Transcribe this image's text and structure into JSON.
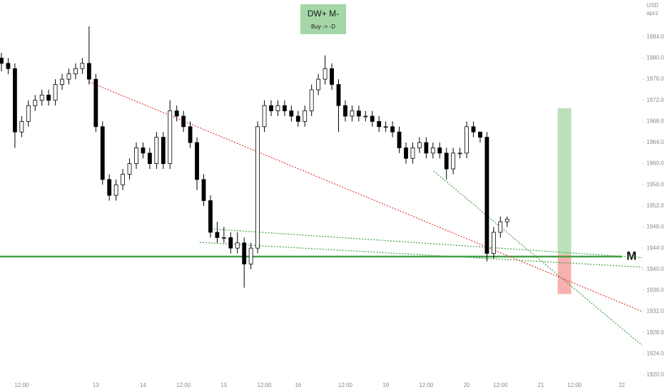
{
  "chart_data": {
    "type": "candlestick",
    "currency": "USD",
    "note": "apcz",
    "signal": {
      "title": "DW+ M-",
      "subtitle": "Buy -> -D"
    },
    "categories": [
      null,
      null,
      null,
      "12:00",
      null,
      null,
      null,
      null,
      null,
      null,
      null,
      null,
      null,
      null,
      "13",
      null,
      null,
      null,
      null,
      null,
      null,
      "14",
      null,
      null,
      null,
      null,
      null,
      "12:00",
      null,
      null,
      null,
      null,
      null,
      "15",
      null,
      null,
      null,
      null,
      null,
      "12:00",
      null,
      null,
      null,
      null,
      "16",
      null,
      null,
      null,
      null,
      null,
      null,
      "12:00",
      null,
      null,
      null,
      null,
      null,
      "19",
      null,
      null,
      null,
      null,
      null,
      "12:00",
      null,
      null,
      null,
      null,
      null,
      "20",
      null,
      null,
      null,
      null,
      "12:00",
      null,
      null,
      null,
      null,
      null,
      "21",
      null,
      null,
      null,
      null,
      "12:00",
      null,
      null,
      null,
      null,
      null,
      null,
      "22",
      null,
      null,
      null
    ],
    "open": [
      1980,
      1979,
      1978,
      1966,
      1968,
      1971,
      1972,
      1973,
      1972,
      1975,
      1976,
      1977,
      1978,
      1979,
      1976,
      1967,
      1957,
      1954,
      1956,
      1958,
      1960,
      1963,
      1962,
      1960,
      1965,
      1960,
      1970,
      1969,
      1967,
      1964,
      1957,
      1953,
      1947,
      1946,
      1946,
      1944,
      1945,
      1941,
      1944,
      1967,
      1971,
      1970,
      1971,
      1970,
      1969,
      1968,
      1970,
      1974,
      1976,
      1978,
      1975,
      1971,
      1969,
      1970,
      1969,
      1969,
      1968,
      1967,
      1967,
      1966,
      1963,
      1961,
      1963,
      1964,
      1962,
      1963,
      1962,
      1959,
      1962,
      1962,
      1967,
      1966,
      1965,
      1943,
      1947,
      1949,
      null,
      null,
      null,
      null,
      null,
      null,
      null,
      null,
      null,
      null,
      null,
      null,
      null,
      null,
      null,
      null,
      null,
      null,
      null,
      null
    ],
    "high": [
      1981,
      1980,
      1979,
      1969,
      1972,
      1973,
      1974,
      1974,
      1976,
      1977,
      1978,
      1979,
      1980,
      1986,
      1977,
      1968,
      1958,
      1957,
      1959,
      1961,
      1964,
      1964,
      1963,
      1966,
      1966,
      1972,
      1971,
      1970,
      1968,
      1965,
      1958,
      1954,
      1949,
      1948,
      1947,
      1947,
      1946,
      1945,
      1968,
      1972,
      1972,
      1972,
      1972,
      1971,
      1970,
      1971,
      1975,
      1977,
      1980.5,
      1979,
      1976,
      1972,
      1971,
      1971,
      1970,
      1970,
      1969,
      1968,
      1968,
      1967,
      1964,
      1964,
      1965,
      1965,
      1964,
      1964,
      1963,
      1963,
      1963,
      1968,
      1968,
      1966,
      1966,
      1948,
      1950,
      1950,
      null,
      null,
      null,
      null,
      null,
      null,
      null,
      null,
      null,
      null,
      null,
      null,
      null,
      null,
      null,
      null,
      null,
      null,
      null,
      null
    ],
    "low": [
      1977.5,
      1977,
      1963,
      1965,
      1967,
      1970,
      1971,
      1971,
      1971,
      1974,
      1975,
      1976,
      1977,
      1975,
      1966,
      1956,
      1953,
      1953,
      1955,
      1957,
      1959,
      1961,
      1959,
      1959,
      1959,
      1959,
      1968,
      1966,
      1963,
      1955,
      1952,
      1946,
      1945,
      1945,
      1943,
      1943,
      1936.5,
      1940,
      1943,
      1966,
      1969,
      1969,
      1969,
      1968,
      1967,
      1967,
      1969,
      1973,
      1975,
      1974,
      1966,
      1968,
      1968,
      1968,
      1968,
      1967,
      1966,
      1966,
      1965,
      1962,
      1960,
      1960,
      1962,
      1961,
      1961,
      1961,
      1957,
      1958,
      1961,
      1961,
      1965,
      1964,
      1941.5,
      1942,
      1946,
      1948,
      null,
      null,
      null,
      null,
      null,
      null,
      null,
      null,
      null,
      null,
      null,
      null,
      null,
      null,
      null,
      null,
      null,
      null,
      null,
      null
    ],
    "close": [
      1979,
      1978,
      1966,
      1968,
      1971,
      1972,
      1973,
      1972,
      1975,
      1976,
      1977,
      1978,
      1979,
      1976,
      1967,
      1957,
      1954,
      1956,
      1958,
      1960,
      1963,
      1962,
      1960,
      1965,
      1960,
      1970,
      1969,
      1967,
      1964,
      1957,
      1953,
      1947,
      1946,
      1946,
      1944,
      1945,
      1941,
      1944,
      1967,
      1971,
      1970,
      1971,
      1970,
      1969,
      1968,
      1970,
      1974,
      1976,
      1978,
      1975,
      1971,
      1969,
      1970,
      1969,
      1969,
      1968,
      1967,
      1967,
      1966,
      1963,
      1961,
      1963,
      1964,
      1962,
      1963,
      1962,
      1959,
      1962,
      1962,
      1967,
      1966,
      1965,
      1943,
      1947,
      1949,
      1949.5,
      null,
      null,
      null,
      null,
      null,
      null,
      null,
      null,
      null,
      null,
      null,
      null,
      null,
      null,
      null,
      null,
      null,
      null,
      null,
      null
    ],
    "up_color": "#ffffff",
    "down_color": "#000000",
    "wick_color": "#000000",
    "ylim": [
      1918.1,
      1991
    ],
    "yticks": [
      {
        "value": 1920,
        "label": "1920.0"
      },
      {
        "value": 1924,
        "label": "1924.0"
      },
      {
        "value": 1928,
        "label": "1928.0"
      },
      {
        "value": 1932,
        "label": "1932.0"
      },
      {
        "value": 1936,
        "label": "1936.0"
      },
      {
        "value": 1940,
        "label": "1940.0"
      },
      {
        "value": 1944,
        "label": "1944.0"
      },
      {
        "value": 1948,
        "label": "1948.0"
      },
      {
        "value": 1952,
        "label": "1952.0"
      },
      {
        "value": 1956,
        "label": "1956.0"
      },
      {
        "value": 1960,
        "label": "1960.0"
      },
      {
        "value": 1964,
        "label": "1964.0"
      },
      {
        "value": 1968,
        "label": "1968.0"
      },
      {
        "value": 1972,
        "label": "1972.0"
      },
      {
        "value": 1976,
        "label": "1976.0"
      },
      {
        "value": 1980,
        "label": "1980.0"
      },
      {
        "value": 1984,
        "label": "1984.0"
      }
    ],
    "hline": {
      "value": 1942.4,
      "color": "#43a047",
      "label": "M"
    },
    "lines": [
      {
        "color": "#e53935",
        "from": [
          13,
          1975.5
        ],
        "to": [
          95,
          1932
        ]
      },
      {
        "color": "#43a047",
        "from": [
          29.4,
          1945.1
        ],
        "to": [
          95,
          1940.4
        ]
      },
      {
        "color": "#43a047",
        "from": [
          31.5,
          1947.6
        ],
        "to": [
          95,
          1942.2
        ]
      },
      {
        "color": "#43a047",
        "from": [
          64.1,
          1958.6
        ],
        "to": [
          95,
          1925.6
        ]
      }
    ],
    "position": {
      "from": 82.5,
      "to": 84.5,
      "entry": 1942.8,
      "target": 1970.5,
      "stop": 1935.3,
      "profit_color": "#66bb6a",
      "loss_color": "#ef5350"
    }
  }
}
